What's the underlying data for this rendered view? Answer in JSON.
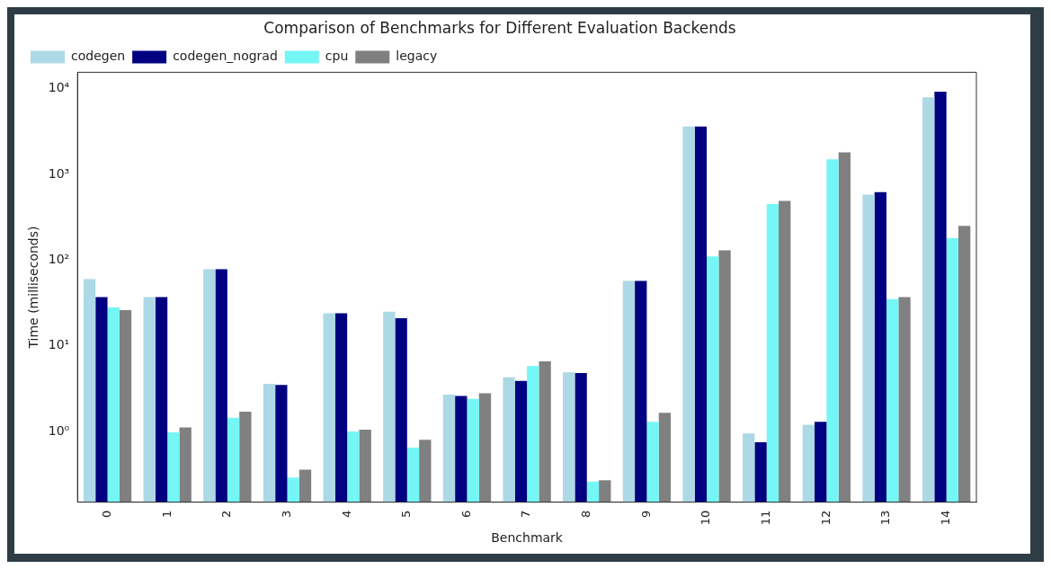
{
  "chart_data": {
    "type": "bar",
    "title": "Comparison of Benchmarks for Different Evaluation Backends",
    "xlabel": "Benchmark",
    "ylabel": "Time (milliseconds)",
    "categories": [
      "0",
      "1",
      "2",
      "3",
      "4",
      "5",
      "6",
      "7",
      "8",
      "9",
      "10",
      "11",
      "12",
      "13",
      "14"
    ],
    "series": [
      {
        "name": "codegen",
        "color": "#add8e6",
        "values": [
          60,
          37,
          78,
          3.6,
          24,
          25,
          2.7,
          4.3,
          4.9,
          57,
          3600,
          0.95,
          1.2,
          580,
          7900
        ]
      },
      {
        "name": "codegen_nograd",
        "color": "#000080",
        "values": [
          37,
          37,
          78,
          3.5,
          24,
          21,
          2.6,
          3.9,
          4.8,
          57,
          3600,
          0.75,
          1.3,
          620,
          9200
        ]
      },
      {
        "name": "cpu",
        "color": "#75f6f6",
        "values": [
          28,
          0.98,
          1.45,
          0.29,
          1.0,
          0.65,
          2.4,
          5.8,
          0.26,
          1.3,
          110,
          450,
          1500,
          35,
          180
        ]
      },
      {
        "name": "legacy",
        "color": "#808080",
        "values": [
          26,
          1.12,
          1.7,
          0.36,
          1.05,
          0.8,
          2.8,
          6.6,
          0.27,
          1.65,
          130,
          490,
          1800,
          37,
          250
        ]
      }
    ],
    "log": "y",
    "ylim": [
      0.15,
      15500
    ],
    "yticks": [
      {
        "value": 1,
        "label": "10⁰"
      },
      {
        "value": 10,
        "label": "10¹"
      },
      {
        "value": 100,
        "label": "10²"
      },
      {
        "value": 1000,
        "label": "10³"
      },
      {
        "value": 10000,
        "label": "10⁴"
      }
    ],
    "legend": "top left",
    "grid": false
  }
}
